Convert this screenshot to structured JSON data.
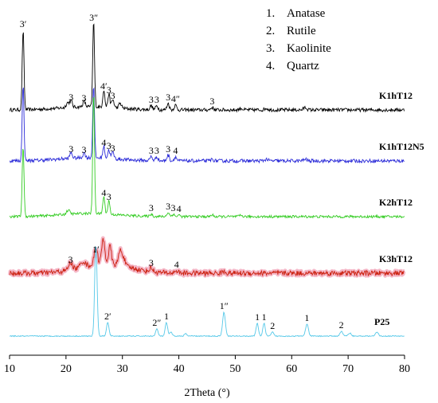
{
  "chart_data": {
    "type": "line",
    "xlabel": "2Theta (°)",
    "ylabel": "",
    "xlim": [
      10,
      80
    ],
    "xticks": [
      "10",
      "20",
      "30",
      "40",
      "50",
      "60",
      "70",
      "80"
    ],
    "grid": false,
    "legend_position": "top-right",
    "legend": [
      {
        "num": "1.",
        "text": "Anatase"
      },
      {
        "num": "2.",
        "text": "Rutile"
      },
      {
        "num": "3.",
        "text": "Kaolinite"
      },
      {
        "num": "4.",
        "text": "Quartz"
      }
    ],
    "series": [
      {
        "name": "K1hT12",
        "color": "#000000",
        "peaks": [
          {
            "x": 12.4,
            "h": 100,
            "w": 0.22,
            "label": "3′"
          },
          {
            "x": 20.3,
            "h": 6,
            "w": 0.4
          },
          {
            "x": 20.9,
            "h": 8,
            "w": 0.3,
            "label": "3"
          },
          {
            "x": 23.2,
            "h": 7,
            "w": 0.3,
            "label": "3"
          },
          {
            "x": 24.9,
            "h": 108,
            "w": 0.22,
            "label": "3″"
          },
          {
            "x": 26.7,
            "h": 22,
            "w": 0.25,
            "label": "4′"
          },
          {
            "x": 27.6,
            "h": 17,
            "w": 0.25,
            "label": "3"
          },
          {
            "x": 28.3,
            "h": 10,
            "w": 0.3,
            "label": "3"
          },
          {
            "x": 29.6,
            "h": 6,
            "w": 0.35
          },
          {
            "x": 35.1,
            "h": 5,
            "w": 0.3,
            "label": "3"
          },
          {
            "x": 36.1,
            "h": 5,
            "w": 0.3,
            "label": "3"
          },
          {
            "x": 38.1,
            "h": 8,
            "w": 0.3,
            "label": "3"
          },
          {
            "x": 39.4,
            "h": 6,
            "w": 0.3,
            "label": "4″"
          },
          {
            "x": 45.9,
            "h": 3,
            "w": 0.35,
            "label": "3"
          },
          {
            "x": 51.0,
            "h": 2,
            "w": 0.4
          },
          {
            "x": 55.5,
            "h": 2,
            "w": 0.4
          },
          {
            "x": 62.4,
            "h": 3,
            "w": 0.4
          }
        ]
      },
      {
        "name": "K1hT12N5",
        "color": "#2a2ad8",
        "peaks": [
          {
            "x": 12.4,
            "h": 95,
            "w": 0.22
          },
          {
            "x": 20.9,
            "h": 7,
            "w": 0.3,
            "label": "3"
          },
          {
            "x": 23.2,
            "h": 6,
            "w": 0.3,
            "label": "3"
          },
          {
            "x": 24.9,
            "h": 92,
            "w": 0.22
          },
          {
            "x": 26.7,
            "h": 15,
            "w": 0.25,
            "label": "4"
          },
          {
            "x": 27.6,
            "h": 11,
            "w": 0.25,
            "label": "3"
          },
          {
            "x": 28.3,
            "h": 8,
            "w": 0.3,
            "label": "3"
          },
          {
            "x": 35.1,
            "h": 5,
            "w": 0.3,
            "label": "3"
          },
          {
            "x": 36.1,
            "h": 5,
            "w": 0.3,
            "label": "3"
          },
          {
            "x": 38.1,
            "h": 7,
            "w": 0.3,
            "label": "3"
          },
          {
            "x": 39.4,
            "h": 5,
            "w": 0.3,
            "label": "4"
          },
          {
            "x": 45.9,
            "h": 2,
            "w": 0.35
          },
          {
            "x": 55.5,
            "h": 2,
            "w": 0.4
          },
          {
            "x": 62.4,
            "h": 2,
            "w": 0.4
          }
        ]
      },
      {
        "name": "K2hT12",
        "color": "#33cc22",
        "peaks": [
          {
            "x": 12.4,
            "h": 88,
            "w": 0.22
          },
          {
            "x": 20.4,
            "h": 5,
            "w": 0.4
          },
          {
            "x": 24.9,
            "h": 152,
            "w": 0.22
          },
          {
            "x": 26.7,
            "h": 22,
            "w": 0.25,
            "label": "4"
          },
          {
            "x": 27.6,
            "h": 17,
            "w": 0.25,
            "label": "3"
          },
          {
            "x": 35.1,
            "h": 3,
            "w": 0.3,
            "label": "3"
          },
          {
            "x": 38.1,
            "h": 5,
            "w": 0.3,
            "label": "3"
          },
          {
            "x": 39.0,
            "h": 3,
            "w": 0.3,
            "label": "3"
          },
          {
            "x": 40.0,
            "h": 2,
            "w": 0.3,
            "label": "4"
          },
          {
            "x": 45.9,
            "h": 2,
            "w": 0.35
          },
          {
            "x": 51.0,
            "h": 1.5,
            "w": 0.4
          }
        ]
      },
      {
        "name": "K3hT12",
        "color": "#cc2211",
        "peaks": [
          {
            "x": 20.8,
            "h": 9,
            "w": 0.5,
            "label": "3"
          },
          {
            "x": 23.0,
            "h": 7,
            "w": 0.6
          },
          {
            "x": 25.3,
            "h": 22,
            "w": 0.4,
            "label": "1′"
          },
          {
            "x": 26.6,
            "h": 30,
            "w": 0.4
          },
          {
            "x": 27.8,
            "h": 22,
            "w": 0.35
          },
          {
            "x": 29.6,
            "h": 18,
            "w": 0.4
          },
          {
            "x": 30.2,
            "h": 10,
            "w": 0.4
          },
          {
            "x": 35.1,
            "h": 5,
            "w": 0.4,
            "label": "3"
          },
          {
            "x": 39.6,
            "h": 3,
            "w": 0.4,
            "label": "4"
          },
          {
            "x": 48.0,
            "h": 2,
            "w": 0.5
          }
        ]
      },
      {
        "name": "P25",
        "color": "#55c8e8",
        "peaks": [
          {
            "x": 25.3,
            "h": 115,
            "w": 0.3
          },
          {
            "x": 27.4,
            "h": 17,
            "w": 0.3,
            "label": "2′"
          },
          {
            "x": 36.1,
            "h": 9,
            "w": 0.3,
            "label": "2″"
          },
          {
            "x": 37.8,
            "h": 17,
            "w": 0.3,
            "label": "1"
          },
          {
            "x": 38.6,
            "h": 5,
            "w": 0.3
          },
          {
            "x": 41.2,
            "h": 3,
            "w": 0.3
          },
          {
            "x": 48.0,
            "h": 30,
            "w": 0.35,
            "label": "1″"
          },
          {
            "x": 53.9,
            "h": 16,
            "w": 0.3,
            "label": "1"
          },
          {
            "x": 55.1,
            "h": 16,
            "w": 0.3,
            "label": "1"
          },
          {
            "x": 56.6,
            "h": 5,
            "w": 0.3,
            "label": "2"
          },
          {
            "x": 62.7,
            "h": 15,
            "w": 0.35,
            "label": "1"
          },
          {
            "x": 68.8,
            "h": 6,
            "w": 0.35,
            "label": "2"
          },
          {
            "x": 70.3,
            "h": 4,
            "w": 0.35
          },
          {
            "x": 75.1,
            "h": 5,
            "w": 0.35
          }
        ]
      }
    ]
  }
}
